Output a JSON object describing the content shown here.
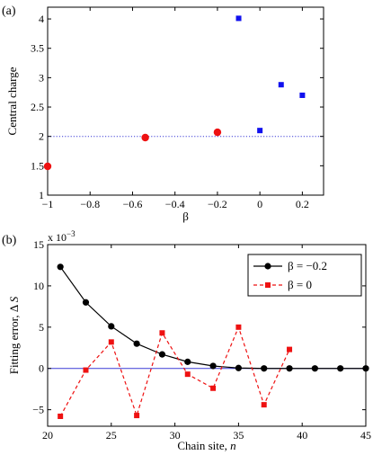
{
  "chart_data": [
    {
      "panel_label": "(a)",
      "type": "scatter",
      "xlabel": "β",
      "ylabel": "Central charge",
      "xlim": [
        -1,
        0.3
      ],
      "ylim": [
        1,
        4.2
      ],
      "xticks": [
        -1,
        -0.8,
        -0.6,
        -0.4,
        -0.2,
        0,
        0.2
      ],
      "xtick_labels": [
        "−1",
        "−0.8",
        "−0.6",
        "−0.4",
        "−0.2",
        "0",
        "0.2"
      ],
      "yticks": [
        1,
        1.5,
        2,
        2.5,
        3,
        3.5,
        4
      ],
      "ytick_labels": [
        "1",
        "1.5",
        "2",
        "2.5",
        "3",
        "3.5",
        "4"
      ],
      "reference_line": {
        "y": 2,
        "style": "dotted",
        "color": "#3a3ad6"
      },
      "series": [
        {
          "marker": "circle",
          "color": "#ee1111",
          "points": [
            [
              -1.0,
              1.49
            ],
            [
              -0.54,
              1.98
            ],
            [
              -0.2,
              2.07
            ]
          ]
        },
        {
          "marker": "square",
          "color": "#1111ee",
          "points": [
            [
              -0.1,
              4.01
            ],
            [
              0.0,
              2.1
            ],
            [
              0.1,
              2.88
            ],
            [
              0.2,
              2.7
            ]
          ]
        }
      ],
      "grid": false
    },
    {
      "panel_label": "(b)",
      "type": "line",
      "xlabel": "Chain site, n",
      "xlabel_plain": "Chain site, ",
      "xlabel_italic": "n",
      "ylabel": "Fitting error, Δ S",
      "ylabel_plain": "Fitting error, Δ ",
      "ylabel_italic": "S",
      "scale_note": "x 10",
      "scale_exponent": "−3",
      "xlim": [
        20,
        45
      ],
      "ylim": [
        -7,
        15
      ],
      "xticks": [
        20,
        25,
        30,
        35,
        40,
        45
      ],
      "xtick_labels": [
        "20",
        "25",
        "30",
        "35",
        "40",
        "45"
      ],
      "yticks": [
        -5,
        0,
        5,
        10,
        15
      ],
      "ytick_labels": [
        "−5",
        "0",
        "5",
        "10",
        "15"
      ],
      "reference_line": {
        "y": 0,
        "style": "solid",
        "color": "#3a3ad6"
      },
      "legend_position": "top-right",
      "series": [
        {
          "name": "β = −0.2",
          "marker": "circle",
          "color": "#000000",
          "line": "solid",
          "x": [
            21,
            23,
            25,
            27,
            29,
            31,
            33,
            35,
            37,
            39,
            41,
            43,
            45
          ],
          "y": [
            12.3,
            8.0,
            5.1,
            3.0,
            1.7,
            0.8,
            0.3,
            0.05,
            0.0,
            0.0,
            0.0,
            0.0,
            0.0
          ]
        },
        {
          "name": "β = 0",
          "marker": "square",
          "color": "#ee1111",
          "line": "dashed",
          "x": [
            21,
            23,
            25,
            27,
            29,
            31,
            33,
            35,
            37,
            39
          ],
          "y": [
            -5.8,
            -0.2,
            3.2,
            -5.7,
            4.3,
            -0.7,
            -2.4,
            5.0,
            -4.4,
            2.3
          ]
        }
      ],
      "grid": false
    }
  ]
}
